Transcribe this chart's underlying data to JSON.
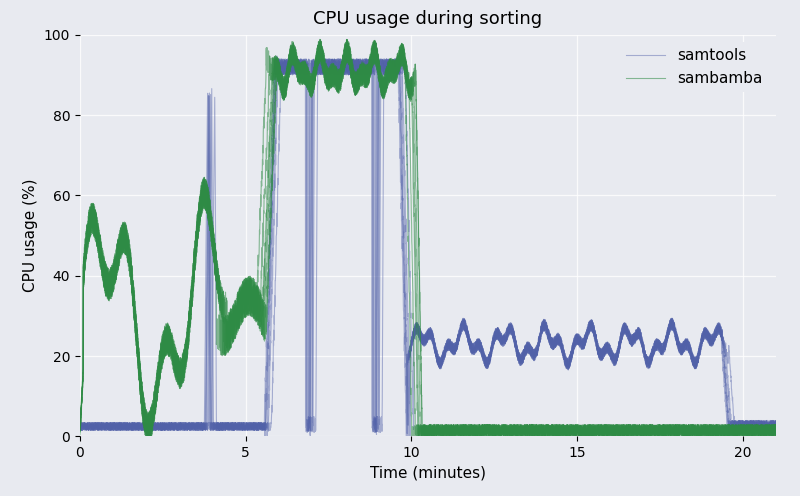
{
  "title": "CPU usage during sorting",
  "xlabel": "Time (minutes)",
  "ylabel": "CPU usage (%)",
  "xlim": [
    0,
    21
  ],
  "ylim": [
    0,
    100
  ],
  "xticks": [
    0,
    5,
    10,
    15,
    20
  ],
  "yticks": [
    0,
    20,
    40,
    60,
    80,
    100
  ],
  "samtools_color": "#5060a8",
  "sambamba_color": "#2e8b45",
  "samtools_alpha": 0.45,
  "sambamba_alpha": 0.55,
  "background_color": "#e8eaf0",
  "title_fontsize": 13,
  "label_fontsize": 11,
  "tick_fontsize": 10,
  "legend_fontsize": 11,
  "n_samtools": 7,
  "n_sambamba": 7
}
